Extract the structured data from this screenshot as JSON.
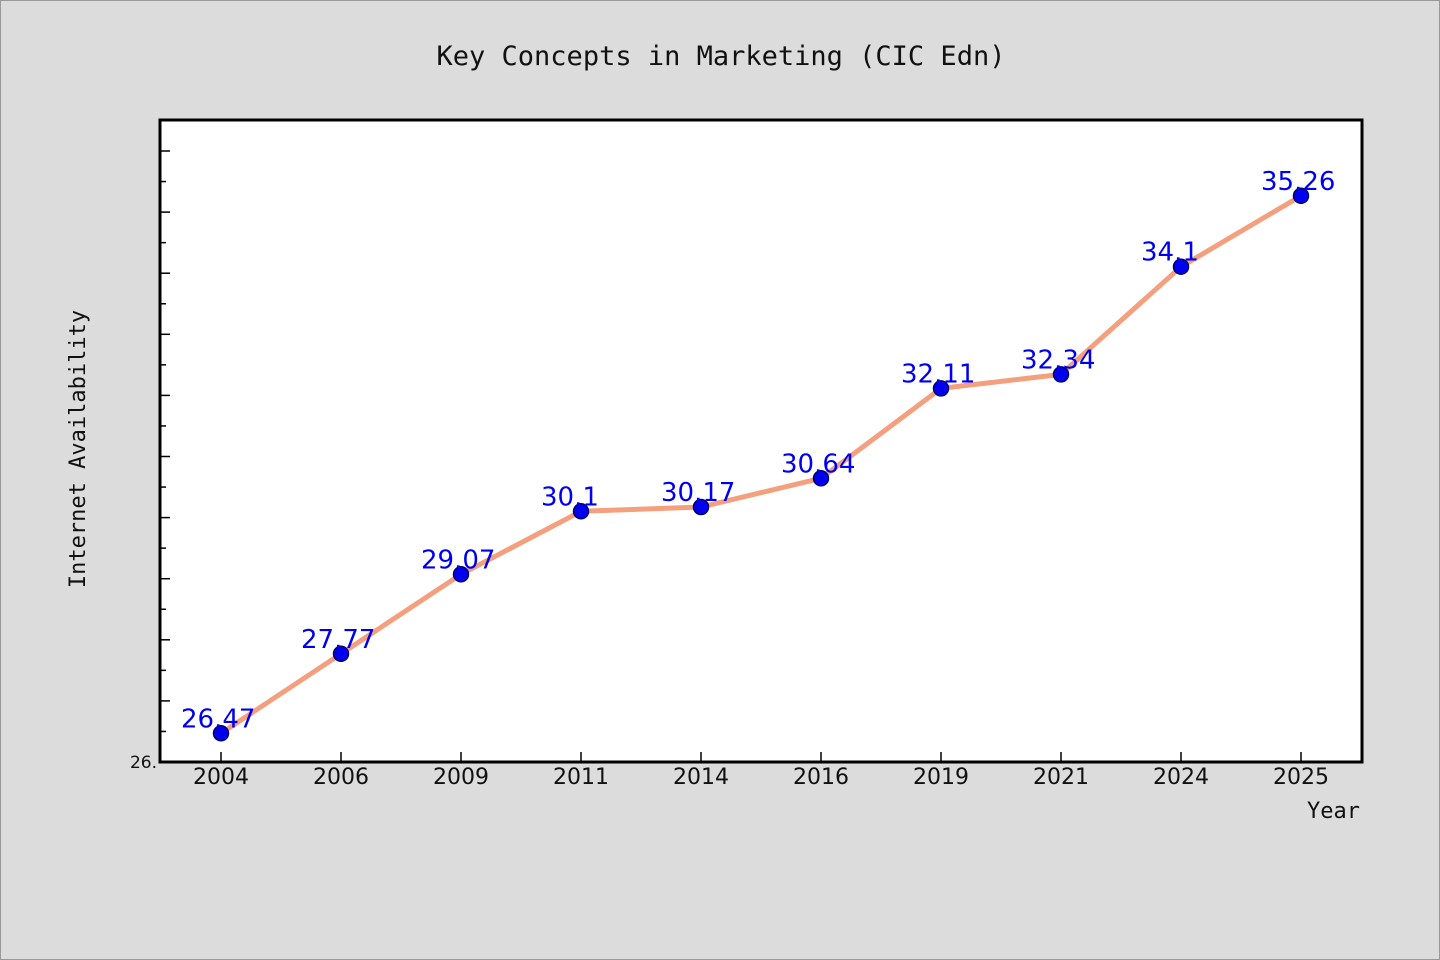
{
  "chart_data": {
    "type": "line",
    "title": "Key Concepts in Marketing (CIC Edn)",
    "xlabel": "Year",
    "ylabel": "Internet Availability",
    "categories": [
      "2004",
      "2006",
      "2009",
      "2011",
      "2014",
      "2016",
      "2019",
      "2021",
      "2024",
      "2025"
    ],
    "series": [
      {
        "values": [
          26.47,
          27.77,
          29.07,
          30.1,
          30.17,
          30.64,
          32.11,
          32.34,
          34.1,
          35.26
        ],
        "data_labels": [
          "26.47",
          "27.77",
          "29.07",
          "30.1",
          "30.17",
          "30.64",
          "32.11",
          "32.34",
          "34.1",
          "35.26"
        ]
      }
    ],
    "ylim": [
      26.0,
      36.5
    ],
    "y_tick_labels": [
      "26."
    ],
    "grid": false,
    "legend": "none",
    "colors": {
      "line": "#f4a07e",
      "marker": "#0000ee",
      "marker_edge": "#000066",
      "data_label": "#0000ee",
      "plot_background": "#ffffff",
      "page_background": "#dcdcdc"
    }
  }
}
